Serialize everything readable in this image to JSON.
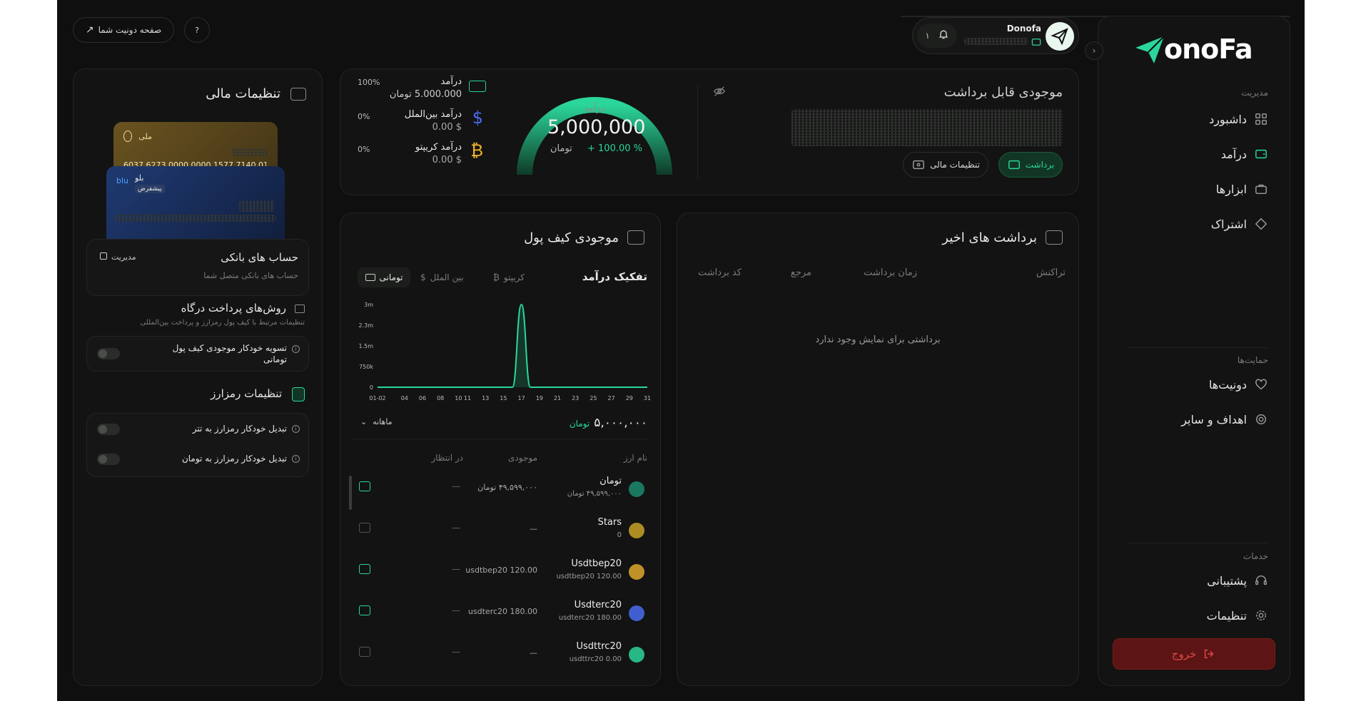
{
  "brand": {
    "logo_text": "onoFa",
    "accent": "#2bd69a",
    "danger": "#7a1c1c"
  },
  "sidebar": {
    "sections": {
      "management": "مدیریت",
      "supports": "حمایت‌ها",
      "services": "خدمات"
    },
    "items": [
      {
        "label": "داشبورد",
        "icon": "grid-icon"
      },
      {
        "label": "درآمد",
        "icon": "wallet-icon"
      },
      {
        "label": "ابزارها",
        "icon": "briefcase-icon"
      },
      {
        "label": "اشتراک",
        "icon": "diamond-icon"
      },
      {
        "label": "دونیت‌ها",
        "icon": "heart-icon"
      },
      {
        "label": "اهداف و سایر",
        "icon": "target-icon"
      },
      {
        "label": "پشتیبانی",
        "icon": "headset-icon"
      },
      {
        "label": "تنظیمات",
        "icon": "gear-icon"
      }
    ],
    "logout": "خروج"
  },
  "header": {
    "username": "Donofa",
    "notifications_count": "۱",
    "donate_page": "صفحه دونیت شما"
  },
  "balance": {
    "title": "موجودی قابل برداشت",
    "withdraw": "برداشت",
    "financial_settings": "تنظیمات مالی"
  },
  "gauge": {
    "label": "درآمد",
    "value": "5,000,000",
    "unit": "تومان",
    "change": "+ 100.00 %",
    "fill_fraction": 1.0
  },
  "income_breakdown": [
    {
      "label": "درآمد",
      "amount": "5.000.000 تومان",
      "percent": "100%",
      "icon": "toman-icon"
    },
    {
      "label": "درآمد بین‌الملل",
      "amount": "$ 0.00",
      "percent": "0%",
      "icon": "dollar-icon"
    },
    {
      "label": "درآمد کریپتو",
      "amount": "$ 0.00",
      "percent": "0%",
      "icon": "bitcoin-icon"
    }
  ],
  "withdrawals": {
    "title": "برداشت های اخیر",
    "columns": [
      "تراکنش",
      "زمان برداشت",
      "مرجع",
      "کد برداشت"
    ],
    "empty": "برداشتی برای نمایش وجود ندارد"
  },
  "wallet": {
    "title": "موجودی کیف پول",
    "breakdown_title": "تفکیک درآمد",
    "tabs": [
      "تومانی",
      "بین الملل",
      "کریپتو"
    ],
    "total": "۵,۰۰۰,۰۰۰",
    "total_unit": "تومان",
    "period": "ماهانه",
    "columns": [
      "نام ارز",
      "موجودی",
      "در انتظار"
    ],
    "rows": [
      {
        "name": "تومان",
        "sub": "۴۹,۵۹۹,۰۰۰ تومان",
        "balance": "۴۹,۵۹۹,۰۰۰ تومان",
        "pending": "—",
        "icon": "toman-coin-icon",
        "active": true
      },
      {
        "name": "Stars",
        "sub": "0",
        "balance": "—",
        "pending": "—",
        "icon": "star-coin-icon",
        "active": false
      },
      {
        "name": "Usdtbep20",
        "sub": "usdtbep20 120.00",
        "balance": "usdtbep20 120.00",
        "pending": "—",
        "icon": "bnb-coin-icon",
        "active": true
      },
      {
        "name": "Usdterc20",
        "sub": "usdterc20 180.00",
        "balance": "usdterc20 180.00",
        "pending": "—",
        "icon": "eth-coin-icon",
        "active": true
      },
      {
        "name": "Usdttrc20",
        "sub": "usdttrc20 0.00",
        "balance": "—",
        "pending": "—",
        "icon": "tron-coin-icon",
        "active": false
      }
    ]
  },
  "chart_data": {
    "type": "area",
    "x": [
      1,
      2,
      3,
      4,
      5,
      6,
      7,
      8,
      9,
      10,
      11,
      12,
      13,
      14,
      15,
      16,
      17,
      18,
      19,
      20,
      21,
      22,
      23,
      24,
      25,
      26,
      27,
      28,
      29,
      30,
      31
    ],
    "x_tick_labels": [
      "01-02",
      "04",
      "06",
      "08",
      "10",
      "11",
      "13",
      "15",
      "17",
      "19",
      "21",
      "23",
      "25",
      "27",
      "29",
      "31"
    ],
    "x_tick_days": [
      1,
      4,
      6,
      8,
      10,
      11,
      13,
      15,
      17,
      19,
      21,
      23,
      25,
      27,
      29,
      31
    ],
    "y_tick_labels": [
      "0",
      "750k",
      "1.5m",
      "2.3m",
      "3m"
    ],
    "y_tick_values": [
      0,
      750000,
      1500000,
      2250000,
      3000000
    ],
    "values": [
      0,
      0,
      0,
      0,
      0,
      0,
      0,
      0,
      0,
      0,
      0,
      0,
      0,
      0,
      0,
      0,
      3000000,
      0,
      0,
      0,
      0,
      0,
      0,
      0,
      0,
      0,
      0,
      0,
      0,
      0,
      0
    ],
    "ylim": [
      0,
      3000000
    ],
    "color": "#2bd69a"
  },
  "financial": {
    "title": "تنظیمات مالی",
    "card1_bank": "ملی",
    "card2_bank": "بلو",
    "card2_badge": "پیشفرض",
    "card2_logo": "blu",
    "card_number_partial": "6037 6273 0000 0000 1577 7140 01",
    "bank_accounts_title": "حساب های بانکی",
    "bank_accounts_sub": "حساب های بانکی متصل شما",
    "manage": "مدیریت",
    "gateway_title": "روش‌های پرداخت درگاه",
    "gateway_sub": "تنظیمات مرتبط با کیف پول رمزارز و پرداخت بین‌المللی",
    "auto_settle": "تسویه خودکار موجودی کیف پول تومانی",
    "crypto_title": "تنظیمات رمزارز",
    "auto_usdt": "تبدیل خودکار رمزارز به تتر",
    "auto_toman": "تبدیل خودکار رمزارز به تومان"
  }
}
